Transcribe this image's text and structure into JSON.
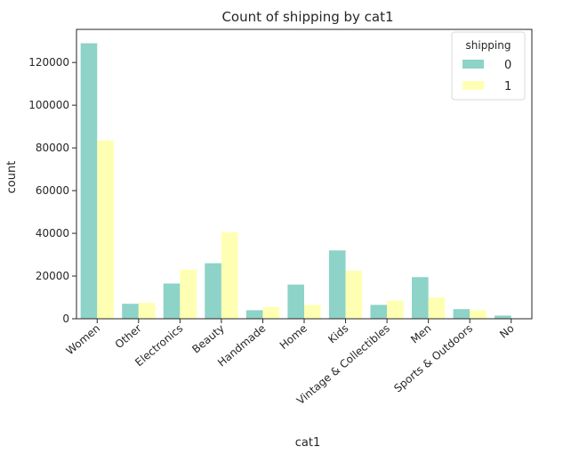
{
  "chart_data": {
    "type": "bar",
    "title": "Count of shipping by cat1",
    "xlabel": "cat1",
    "ylabel": "count",
    "categories": [
      "Women",
      "Other",
      "Electronics",
      "Beauty",
      "Handmade",
      "Home",
      "Kids",
      "Vintage & Collectibles",
      "Men",
      "Sports & Outdoors",
      "No"
    ],
    "series": [
      {
        "name": "0",
        "color": "#8dd3c7",
        "values": [
          129000,
          7000,
          16500,
          26000,
          4000,
          16000,
          32000,
          6500,
          19500,
          4500,
          1500
        ]
      },
      {
        "name": "1",
        "color": "#ffffb3",
        "values": [
          83500,
          7500,
          23000,
          40500,
          5500,
          6500,
          22500,
          8500,
          10000,
          4000,
          0
        ]
      }
    ],
    "ylim": [
      0,
      135500
    ],
    "yticks": [
      0,
      20000,
      40000,
      60000,
      80000,
      100000,
      120000
    ],
    "legend": {
      "title": "shipping",
      "placement": "top-right"
    },
    "grid": false
  }
}
